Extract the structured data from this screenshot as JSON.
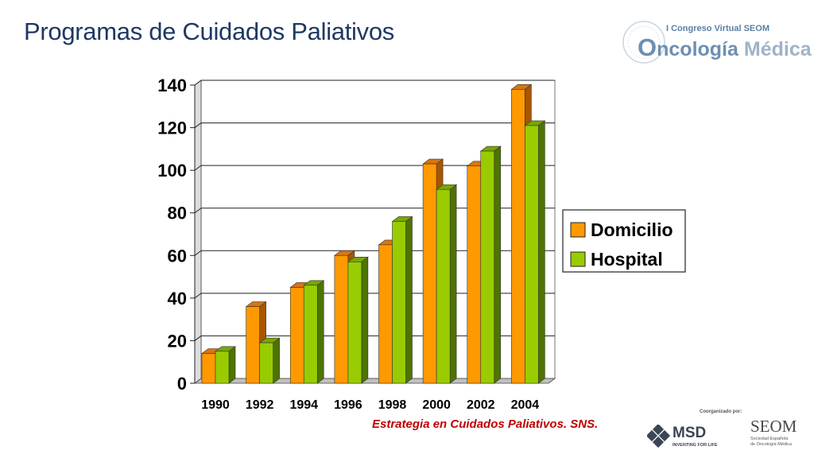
{
  "slide": {
    "title": "Programas de Cuidados Paliativos",
    "citation": "Estrategia en Cuidados Paliativos. SNS."
  },
  "branding": {
    "congress_line1": "I Congreso Virtual SEOM",
    "congress_line2_o": "O",
    "congress_line2_ncologia": "ncología",
    "congress_line2_medica": "Médica",
    "coorganized": "Coorganizado por:",
    "msd_name": "MSD",
    "msd_tagline": "INVENTING FOR LIFE",
    "seom_name": "SEOM",
    "seom_sub1": "Sociedad Española",
    "seom_sub2": "de Oncología Médica"
  },
  "chart_data": {
    "type": "bar",
    "categories": [
      "1990",
      "1992",
      "1994",
      "1996",
      "1998",
      "2000",
      "2002",
      "2004"
    ],
    "series": [
      {
        "name": "Domicilio",
        "values": [
          14,
          36,
          45,
          60,
          65,
          103,
          102,
          138
        ],
        "color": "#ff9900",
        "top": "#d9760f",
        "side": "#a85600"
      },
      {
        "name": "Hospital",
        "values": [
          15,
          19,
          46,
          57,
          76,
          91,
          109,
          121
        ],
        "color": "#99cc00",
        "top": "#7aa600",
        "side": "#4d7400"
      }
    ],
    "ylim": [
      0,
      140
    ],
    "yticks": [
      0,
      20,
      40,
      60,
      80,
      100,
      120,
      140
    ],
    "grid": true,
    "legend": "right",
    "title": "",
    "xlabel": "",
    "ylabel": ""
  }
}
